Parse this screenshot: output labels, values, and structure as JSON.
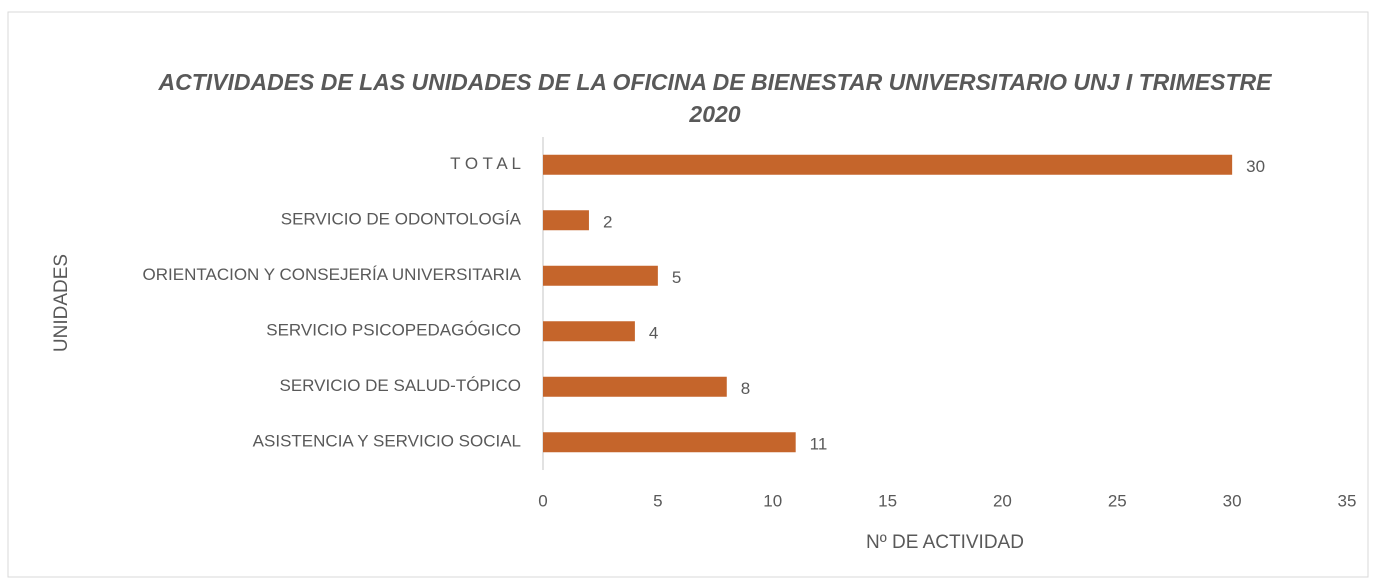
{
  "chart_data": {
    "type": "bar",
    "orientation": "horizontal",
    "title": "ACTIVIDADES DE LAS UNIDADES DE LA OFICINA DE BIENESTAR UNIVERSITARIO UNJ I TRIMESTRE 2020",
    "categories": [
      "T O T A L",
      "SERVICIO DE ODONTOLOGÍA",
      "ORIENTACION Y CONSEJERÍA UNIVERSITARIA",
      "SERVICIO PSICOPEDAGÓGICO",
      "SERVICIO DE SALUD-TÓPICO",
      "ASISTENCIA Y SERVICIO SOCIAL"
    ],
    "values": [
      30,
      2,
      5,
      4,
      8,
      11
    ],
    "color": "#c5652b",
    "xlim": [
      0,
      35
    ],
    "xticks": [
      0,
      5,
      10,
      15,
      20,
      25,
      30,
      35
    ],
    "x_label": "Nº DE ACTIVIDAD",
    "y_label": "UNIDADES",
    "grid": false
  }
}
